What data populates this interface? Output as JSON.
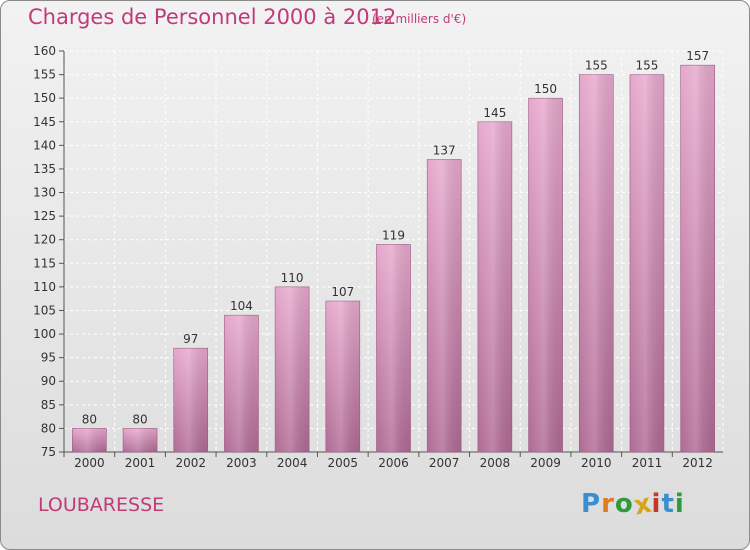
{
  "chart_data": {
    "type": "bar",
    "title": "Charges de Personnel 2000 à 2012",
    "subtitle": "(en milliers d'€)",
    "categories": [
      "2000",
      "2001",
      "2002",
      "2003",
      "2004",
      "2005",
      "2006",
      "2007",
      "2008",
      "2009",
      "2010",
      "2011",
      "2012"
    ],
    "values": [
      80,
      80,
      97,
      104,
      110,
      107,
      119,
      137,
      145,
      150,
      155,
      155,
      157
    ],
    "ylim": [
      75,
      160
    ],
    "yticks": [
      75,
      80,
      85,
      90,
      95,
      100,
      105,
      110,
      115,
      120,
      125,
      130,
      135,
      140,
      145,
      150,
      155,
      160
    ],
    "xlabel": "",
    "ylabel": "",
    "grid": true
  },
  "location": "LOUBARESSE",
  "brand": {
    "letters": [
      "P",
      "r",
      "o",
      "x",
      "i",
      "t",
      "i"
    ],
    "colors": [
      "#3a8fd0",
      "#e07a25",
      "#2f9a3c",
      "#d6a51d",
      "#c0392b",
      "#3a8fd0",
      "#2f9a3c"
    ]
  },
  "colors": {
    "bar_light": "#e6a8cc",
    "bar_dark": "#b06a94",
    "text_accent": "#c03a7a"
  }
}
